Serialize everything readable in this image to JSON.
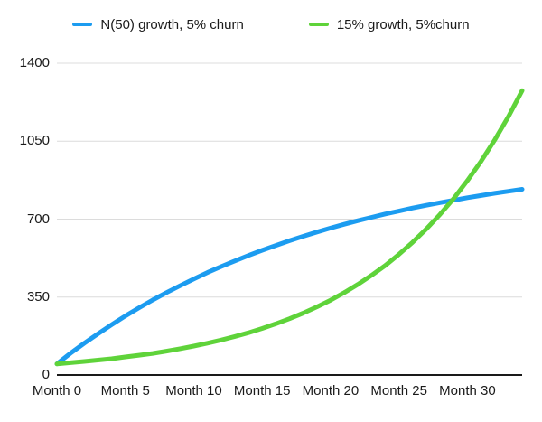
{
  "legend": {
    "items": [
      {
        "label": "N(50) growth, 5% churn",
        "swatch": "blue-line-swatch"
      },
      {
        "label": "15% growth, 5%churn",
        "swatch": "green-line-swatch"
      }
    ]
  },
  "colors": {
    "blue_series": "#1C9CF0",
    "green_series": "#5FD33A",
    "gridline": "#dcdcdc",
    "axis_line": "#1a1a1a",
    "text": "#1a1a1a",
    "background": "#ffffff"
  },
  "chart_data": {
    "type": "line",
    "title": "",
    "legend_position": "top-center",
    "grid": "horizontal-only",
    "x_unit": "months",
    "xlim": [
      0,
      34
    ],
    "ylim": [
      0,
      1400
    ],
    "yticks": [
      0,
      350,
      700,
      1050,
      1400
    ],
    "ytick_labels": [
      "0",
      "350",
      "700",
      "1050",
      "1400"
    ],
    "xtick_positions": [
      0,
      5,
      10,
      15,
      20,
      25,
      30
    ],
    "xtick_labels": [
      "Month 0",
      "Month 5",
      "Month 10",
      "Month 15",
      "Month 20",
      "Month 25",
      "Month 30"
    ],
    "x": [
      0,
      1,
      2,
      3,
      4,
      5,
      6,
      7,
      8,
      9,
      10,
      11,
      12,
      13,
      14,
      15,
      16,
      17,
      18,
      19,
      20,
      21,
      22,
      23,
      24,
      25,
      26,
      27,
      28,
      29,
      30,
      31,
      32,
      33,
      34
    ],
    "series": [
      {
        "name": "N(50) growth, 5% churn",
        "color": "#1C9CF0",
        "values": [
          50,
          98,
          143,
          185,
          226,
          265,
          302,
          337,
          370,
          401,
          431,
          460,
          487,
          512,
          537,
          560,
          582,
          603,
          623,
          642,
          660,
          677,
          693,
          708,
          723,
          736,
          750,
          762,
          774,
          785,
          796,
          806,
          816,
          825,
          834
        ]
      },
      {
        "name": "15% growth, 5%churn",
        "color": "#5FD33A",
        "values": [
          50,
          55,
          61,
          67,
          73,
          81,
          89,
          97,
          107,
          118,
          130,
          143,
          157,
          173,
          190,
          209,
          230,
          253,
          278,
          306,
          336,
          370,
          407,
          448,
          492,
          542,
          596,
          656,
          721,
          793,
          873,
          960,
          1056,
          1161,
          1277
        ]
      }
    ]
  }
}
